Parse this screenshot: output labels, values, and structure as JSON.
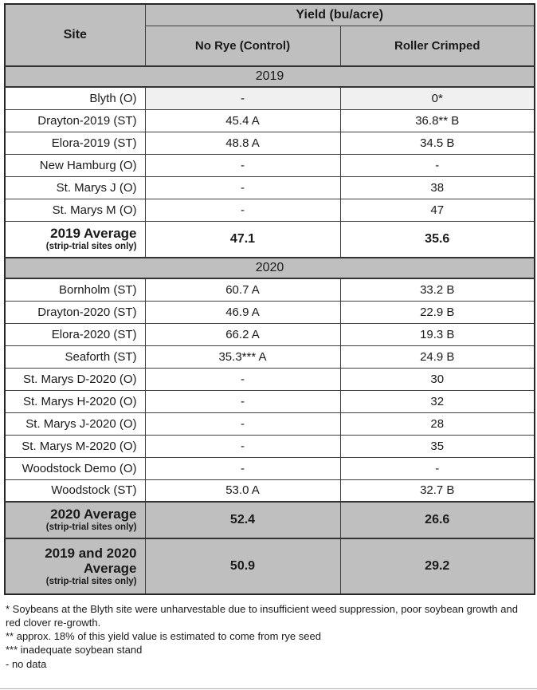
{
  "table": {
    "header": {
      "site": "Site",
      "yield_group": "Yield (bu/acre)",
      "col1": "No Rye (Control)",
      "col2": "Roller Crimped"
    },
    "sections": [
      {
        "year": "2019",
        "rows": [
          {
            "site": "Blyth (O)",
            "no_rye": "-",
            "crimped": "0*",
            "shaded": true
          },
          {
            "site": "Drayton-2019 (ST)",
            "no_rye": "45.4 A",
            "crimped": "36.8** B",
            "shaded": false
          },
          {
            "site": "Elora-2019 (ST)",
            "no_rye": "48.8 A",
            "crimped": "34.5 B",
            "shaded": false
          },
          {
            "site": "New Hamburg (O)",
            "no_rye": "-",
            "crimped": "-",
            "shaded": false
          },
          {
            "site": "St. Marys J (O)",
            "no_rye": "-",
            "crimped": "38",
            "shaded": false
          },
          {
            "site": "St. Marys M (O)",
            "no_rye": "-",
            "crimped": "47",
            "shaded": false
          }
        ],
        "average": {
          "label": "2019 Average",
          "sublabel": "(strip-trial sites only)",
          "no_rye": "47.1",
          "crimped": "35.6",
          "gray": false
        }
      },
      {
        "year": "2020",
        "rows": [
          {
            "site": "Bornholm (ST)",
            "no_rye": "60.7 A",
            "crimped": "33.2 B",
            "shaded": false
          },
          {
            "site": "Drayton-2020 (ST)",
            "no_rye": "46.9 A",
            "crimped": "22.9 B",
            "shaded": false
          },
          {
            "site": "Elora-2020 (ST)",
            "no_rye": "66.2 A",
            "crimped": "19.3 B",
            "shaded": false
          },
          {
            "site": "Seaforth (ST)",
            "no_rye": "35.3*** A",
            "crimped": "24.9 B",
            "shaded": false
          },
          {
            "site": "St. Marys D-2020 (O)",
            "no_rye": "-",
            "crimped": "30",
            "shaded": false
          },
          {
            "site": "St. Marys H-2020 (O)",
            "no_rye": "-",
            "crimped": "32",
            "shaded": false
          },
          {
            "site": "St. Marys J-2020 (O)",
            "no_rye": "-",
            "crimped": "28",
            "shaded": false
          },
          {
            "site": "St. Marys M-2020 (O)",
            "no_rye": "-",
            "crimped": "35",
            "shaded": false
          },
          {
            "site": "Woodstock Demo (O)",
            "no_rye": "-",
            "crimped": "-",
            "shaded": false
          },
          {
            "site": "Woodstock (ST)",
            "no_rye": "53.0 A",
            "crimped": "32.7 B",
            "shaded": false
          }
        ],
        "average": {
          "label": "2020 Average",
          "sublabel": "(strip-trial sites only)",
          "no_rye": "52.4",
          "crimped": "26.6",
          "gray": true
        }
      }
    ],
    "grand_average": {
      "label": "2019 and 2020 Average",
      "sublabel": "(strip-trial sites only)",
      "no_rye": "50.9",
      "crimped": "29.2"
    }
  },
  "footnotes": [
    "* Soybeans at the Blyth site were unharvestable due to insufficient weed suppression, poor soybean growth and red clover re-growth.",
    "** approx. 18% of this yield value is estimated to come from rye seed",
    "*** inadequate soybean stand",
    "- no data"
  ],
  "colors": {
    "header_gray": "#bfbfbf",
    "shaded_row": "#f0f0f0",
    "border": "#3f3f3f"
  }
}
